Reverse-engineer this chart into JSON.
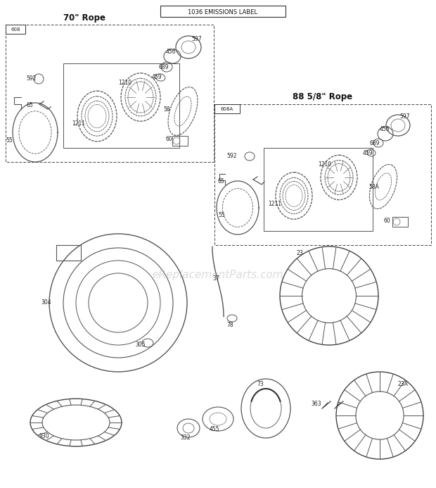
{
  "title": "1036 EMISSIONS LABEL",
  "bg_color": "#ffffff",
  "watermark": "eReplacementParts.com",
  "box1_title": "70\" Rope",
  "box1_label": "608",
  "box2_title": "88 5/8\" Rope",
  "box2_label": "608A",
  "fig_w": 6.2,
  "fig_h": 6.93,
  "dpi": 100
}
